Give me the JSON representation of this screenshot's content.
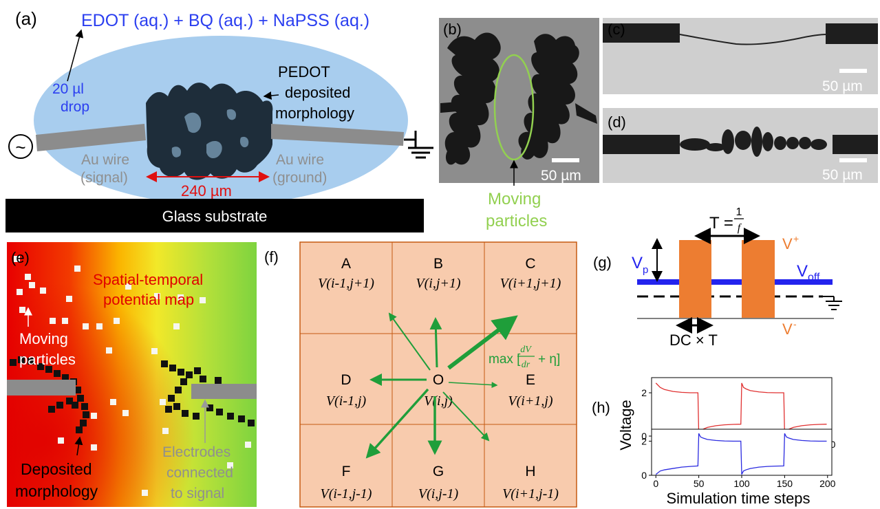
{
  "panel_a": {
    "label": "(a)",
    "solution": "EDOT (aq.) + BQ (aq.) + NaPSS (aq.)",
    "drop_line1": "20 µl",
    "drop_line2": "drop",
    "pedot_line1": "PEDOT",
    "pedot_line2": "deposited",
    "pedot_line3": "morphology",
    "wire_left_1": "Au wire",
    "wire_left_2": "(signal)",
    "wire_right_1": "Au wire",
    "wire_right_2": "(ground)",
    "gap": "240 µm",
    "substrate": "Glass substrate",
    "ac_symbol": "~"
  },
  "panel_b": {
    "label": "(b)",
    "scale": "50 µm",
    "moving_1": "Moving",
    "moving_2": "particles"
  },
  "panel_c": {
    "label": "(c)",
    "scale": "50 µm"
  },
  "panel_d": {
    "label": "(d)",
    "scale": "50 µm"
  },
  "panel_e": {
    "label": "(e)",
    "title_1": "Spatial-temporal",
    "title_2": "potential map",
    "moving_1": "Moving",
    "moving_2": "particles",
    "deposited_1": "Deposited",
    "deposited_2": "morphology",
    "electrodes_1": "Electrodes",
    "electrodes_2": "connected",
    "electrodes_3": "to signal"
  },
  "panel_f": {
    "label": "(f)",
    "cells": [
      {
        "letter": "A",
        "value": "V(i-1,j+1)"
      },
      {
        "letter": "B",
        "value": "V(i,j+1)"
      },
      {
        "letter": "C",
        "value": "V(i+1,j+1)"
      },
      {
        "letter": "D",
        "value": "V(i-1,j)"
      },
      {
        "letter": "O",
        "value": "V(i,j)"
      },
      {
        "letter": "E",
        "value": "V(i+1,j)"
      },
      {
        "letter": "F",
        "value": "V(i-1,j-1)"
      },
      {
        "letter": "G",
        "value": "V(i,j-1)"
      },
      {
        "letter": "H",
        "value": "V(i+1,j-1)"
      }
    ],
    "max_prefix": "max [",
    "max_num": "dV",
    "max_den": "dr",
    "max_suffix": "+ η]"
  },
  "panel_g": {
    "label": "(g)",
    "period_prefix": "T = ",
    "period_num": "1",
    "period_den": "f",
    "vp": "V",
    "vp_sub": "p",
    "voff": "V",
    "voff_sub": "off",
    "vplus": "V",
    "vplus_sup": "+",
    "vminus": "V",
    "vminus_sup": "-",
    "duty": "DC × T"
  },
  "panel_h": {
    "label": "(h)",
    "ylabel": "Voltage",
    "xlabel": "Simulation time steps"
  },
  "colors": {
    "drop": "#a8cdee",
    "solution_text": "#2b3ff0",
    "gap_text": "#e01010",
    "wire_text": "#8f8f8f",
    "moving_text": "#92d050",
    "grid_fill": "#f8cbad",
    "grid_line": "#c55a11",
    "arrow_green": "#1f9e3a",
    "pulse_orange": "#ed7d31",
    "level_blue": "#2323ee"
  },
  "chart_data": [
    {
      "type": "line",
      "series": [
        {
          "x": [
            0,
            5,
            10,
            20,
            30,
            40,
            49,
            50,
            52,
            55,
            60,
            70,
            80,
            90,
            99,
            100,
            102,
            105,
            110,
            120,
            130,
            140,
            149,
            150,
            152,
            155,
            160,
            170,
            180,
            190,
            199
          ],
          "values": [
            2.45,
            2.25,
            2.15,
            2.06,
            2.02,
            2.0,
            2.0,
            0.05,
            0.25,
            0.32,
            0.4,
            0.48,
            0.52,
            0.54,
            0.55,
            2.45,
            2.25,
            2.18,
            2.1,
            2.04,
            2.01,
            2.0,
            2.0,
            0.05,
            0.25,
            0.32,
            0.4,
            0.48,
            0.52,
            0.54,
            0.55
          ]
        }
      ],
      "xticks": [
        0,
        50,
        100,
        150,
        200
      ],
      "yticks": [
        0,
        2
      ],
      "xlim": [
        -5,
        205
      ],
      "ylim": [
        0,
        2.7
      ],
      "color": "red"
    },
    {
      "type": "line",
      "series": [
        {
          "x": [
            0,
            5,
            10,
            20,
            30,
            40,
            49,
            50,
            52,
            55,
            60,
            70,
            80,
            90,
            99,
            100,
            102,
            105,
            110,
            120,
            130,
            140,
            149,
            150,
            152,
            155,
            160,
            170,
            180,
            190,
            199
          ],
          "values": [
            0.05,
            0.25,
            0.32,
            0.4,
            0.48,
            0.52,
            0.55,
            2.45,
            2.25,
            2.18,
            2.1,
            2.04,
            2.01,
            2.0,
            2.0,
            0.05,
            0.25,
            0.32,
            0.4,
            0.48,
            0.52,
            0.54,
            0.55,
            2.45,
            2.25,
            2.18,
            2.1,
            2.04,
            2.01,
            2.0,
            2.0
          ]
        }
      ],
      "xticks": [
        0,
        50,
        100,
        150,
        200
      ],
      "yticks": [
        0,
        2
      ],
      "xlim": [
        -5,
        205
      ],
      "ylim": [
        0,
        2.7
      ],
      "color": "blue"
    }
  ]
}
